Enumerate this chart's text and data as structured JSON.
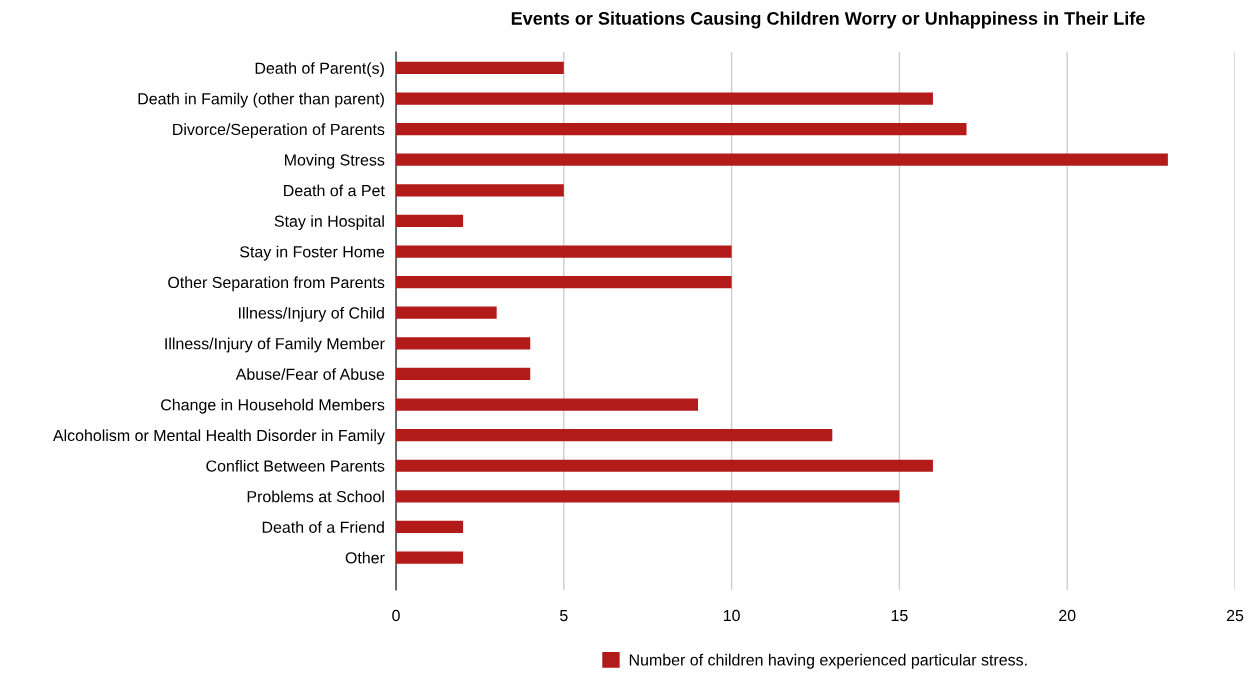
{
  "chart_data": {
    "type": "bar",
    "orientation": "horizontal",
    "title": "Events or Situations Causing Children Worry or Unhappiness in Their Life",
    "categories": [
      "Death of Parent(s)",
      "Death in Family (other than parent)",
      "Divorce/Seperation of Parents",
      "Moving Stress",
      "Death of a Pet",
      "Stay in Hospital",
      "Stay in Foster Home",
      "Other Separation from Parents",
      "Illness/Injury of Child",
      "Illness/Injury of Family Member",
      "Abuse/Fear of Abuse",
      "Change in Household Members",
      "Alcoholism or Mental Health Disorder in Family",
      "Conflict Between Parents",
      "Problems at School",
      "Death of a Friend",
      "Other"
    ],
    "series": [
      {
        "name": "Number of children having experienced particular stress.",
        "color": "#b31b1b",
        "values": [
          5,
          16,
          17,
          23,
          5,
          2,
          10,
          10,
          3,
          4,
          4,
          9,
          13,
          16,
          15,
          2,
          2
        ]
      }
    ],
    "xlim": [
      0,
      25
    ],
    "xticks": [
      0,
      5,
      10,
      15,
      20,
      25
    ],
    "grid": "x",
    "legend": "bottom"
  }
}
